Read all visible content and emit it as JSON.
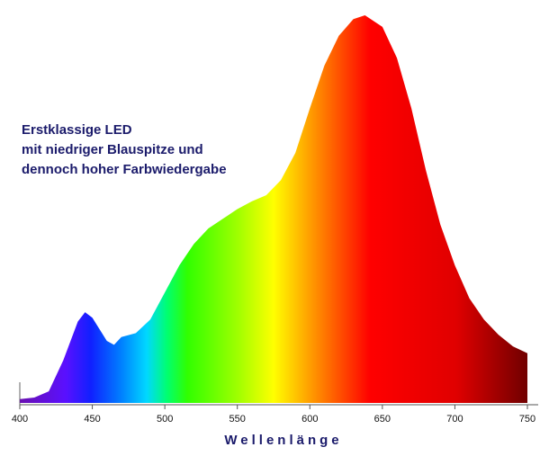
{
  "chart_data": {
    "type": "area",
    "annotation": [
      "Erstklassige LED",
      "mit niedriger Blauspitze und",
      "dennoch hoher Farbwiedergabe"
    ],
    "x_label": "Wellenlänge",
    "x": [
      400,
      410,
      420,
      430,
      440,
      445,
      450,
      460,
      465,
      470,
      480,
      490,
      500,
      510,
      520,
      530,
      540,
      550,
      560,
      570,
      580,
      590,
      600,
      610,
      620,
      630,
      638,
      650,
      660,
      670,
      680,
      690,
      700,
      710,
      720,
      730,
      740,
      750
    ],
    "values": [
      1,
      1.4,
      3,
      11,
      21,
      23.4,
      22,
      16,
      15,
      17,
      18,
      21.5,
      28.5,
      35.5,
      41,
      45,
      47.5,
      50,
      52,
      53.6,
      57.5,
      64.5,
      76,
      87,
      94.7,
      99,
      100,
      97,
      89,
      76,
      60,
      46,
      35.5,
      27,
      21.5,
      17.6,
      14.6,
      12.8
    ],
    "xlim": [
      400,
      750
    ],
    "xticks": [
      400,
      450,
      500,
      550,
      600,
      650,
      700,
      750
    ],
    "ylim": [
      0,
      100
    ],
    "grid": false
  }
}
